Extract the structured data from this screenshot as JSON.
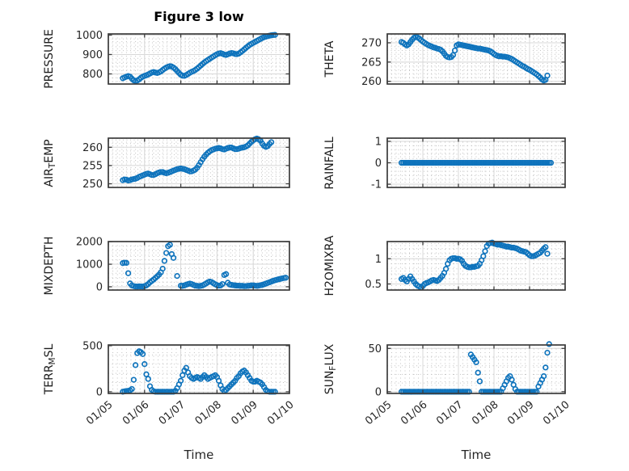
{
  "figure": {
    "title": "Figure 3 low",
    "marker_color": "#0E73BC",
    "axis_color": "#3c3c3c",
    "tick_label_color": "#262626",
    "grid_major_color": "#d8d8d8",
    "grid_minor_color": "#c3c3c3"
  },
  "xaxis": {
    "label": "Time",
    "lim": [
      0,
      5
    ],
    "major_ticks": [
      0,
      1,
      2,
      3,
      4,
      5
    ],
    "tick_labels": [
      "01/05",
      "01/06",
      "01/07",
      "01/08",
      "01/09",
      "01/10"
    ],
    "minor_step": 0.125
  },
  "chart_data": [
    {
      "name": "PRESSURE",
      "type": "scatter",
      "ylabel": {
        "pre": "PRESSURE",
        "sub": "",
        "post": ""
      },
      "ylim": [
        748,
        1006
      ],
      "yticks": [
        800,
        900,
        1000
      ],
      "ytick_labels": [
        "800",
        "900",
        "1000"
      ],
      "yminor": 20,
      "x0": 0.4,
      "dx": 0.05,
      "y": [
        778,
        782,
        786,
        789,
        786,
        776,
        767,
        763,
        766,
        772,
        780,
        786,
        790,
        793,
        797,
        802,
        807,
        810,
        807,
        805,
        808,
        813,
        820,
        827,
        833,
        837,
        840,
        838,
        833,
        825,
        815,
        805,
        796,
        791,
        790,
        794,
        800,
        806,
        811,
        815,
        820,
        827,
        835,
        843,
        851,
        859,
        866,
        872,
        878,
        884,
        890,
        896,
        901,
        905,
        907,
        904,
        900,
        898,
        901,
        905,
        908,
        906,
        903,
        902,
        905,
        911,
        918,
        926,
        934,
        942,
        949,
        955,
        960,
        965,
        970,
        975,
        980,
        985,
        989,
        992,
        995,
        997,
        999,
        1000,
        1001
      ]
    },
    {
      "name": "THETA",
      "type": "scatter",
      "ylabel": {
        "pre": "THETA",
        "sub": "",
        "post": ""
      },
      "ylim": [
        259.3,
        272.3
      ],
      "yticks": [
        260,
        265,
        270
      ],
      "ytick_labels": [
        "260",
        "265",
        "270"
      ],
      "yminor": 1,
      "x0": 0.4,
      "dx": 0.05,
      "y": [
        270.2,
        270.0,
        269.6,
        269.3,
        269.6,
        270.2,
        270.8,
        271.3,
        271.5,
        271.4,
        271.1,
        270.7,
        270.3,
        270.0,
        269.7,
        269.4,
        269.2,
        269.0,
        268.8,
        268.7,
        268.5,
        268.4,
        268.2,
        267.8,
        267.2,
        266.6,
        266.3,
        266.2,
        266.3,
        266.8,
        268.0,
        269.3,
        269.6,
        269.5,
        269.4,
        269.3,
        269.2,
        269.1,
        269.0,
        268.9,
        268.8,
        268.7,
        268.6,
        268.5,
        268.5,
        268.4,
        268.3,
        268.2,
        268.1,
        268.0,
        267.8,
        267.5,
        267.1,
        266.8,
        266.6,
        266.5,
        266.5,
        266.4,
        266.4,
        266.3,
        266.2,
        266.0,
        265.8,
        265.5,
        265.2,
        264.9,
        264.6,
        264.3,
        264.0,
        263.8,
        263.5,
        263.2,
        263.0,
        262.7,
        262.4,
        262.1,
        261.8,
        261.4,
        261.0,
        260.5,
        260.2,
        260.4,
        261.5
      ]
    },
    {
      "name": "AIR_TEMP",
      "type": "scatter",
      "ylabel": {
        "pre": "AIR",
        "sub": "T",
        "post": "EMP"
      },
      "ylim": [
        249,
        262.5
      ],
      "yticks": [
        250,
        255,
        260
      ],
      "ytick_labels": [
        "250",
        "255",
        "260"
      ],
      "yminor": 1,
      "x0": 0.4,
      "dx": 0.05,
      "y": [
        251.0,
        251.2,
        251.1,
        250.9,
        251.0,
        251.2,
        251.3,
        251.4,
        251.6,
        251.9,
        252.1,
        252.3,
        252.5,
        252.7,
        252.8,
        252.6,
        252.4,
        252.4,
        252.6,
        252.9,
        253.1,
        253.2,
        253.2,
        253.0,
        252.9,
        253.0,
        253.2,
        253.4,
        253.6,
        253.8,
        254.0,
        254.1,
        254.2,
        254.1,
        254.0,
        253.8,
        253.6,
        253.4,
        253.4,
        253.6,
        253.9,
        254.4,
        255.1,
        255.9,
        256.7,
        257.4,
        258.0,
        258.5,
        258.9,
        259.2,
        259.4,
        259.6,
        259.7,
        259.8,
        259.7,
        259.5,
        259.4,
        259.6,
        259.8,
        259.9,
        259.9,
        259.7,
        259.5,
        259.5,
        259.6,
        259.8,
        259.9,
        260.0,
        260.2,
        260.5,
        261.0,
        261.5,
        261.9,
        262.2,
        262.4,
        262.2,
        261.8,
        261.0,
        260.4,
        260.1,
        260.3,
        260.9,
        261.4
      ]
    },
    {
      "name": "RAINFALL",
      "type": "scatter",
      "ylabel": {
        "pre": "RAINFALL",
        "sub": "",
        "post": ""
      },
      "ylim": [
        -1.15,
        1.15
      ],
      "yticks": [
        -1,
        0,
        1
      ],
      "ytick_labels": [
        "-1",
        "0",
        "1"
      ],
      "yminor": 0.2,
      "x0": 0.4,
      "dx": 0.05,
      "y": [
        0,
        0,
        0,
        0,
        0,
        0,
        0,
        0,
        0,
        0,
        0,
        0,
        0,
        0,
        0,
        0,
        0,
        0,
        0,
        0,
        0,
        0,
        0,
        0,
        0,
        0,
        0,
        0,
        0,
        0,
        0,
        0,
        0,
        0,
        0,
        0,
        0,
        0,
        0,
        0,
        0,
        0,
        0,
        0,
        0,
        0,
        0,
        0,
        0,
        0,
        0,
        0,
        0,
        0,
        0,
        0,
        0,
        0,
        0,
        0,
        0,
        0,
        0,
        0,
        0,
        0,
        0,
        0,
        0,
        0,
        0,
        0,
        0,
        0,
        0,
        0,
        0,
        0,
        0,
        0,
        0,
        0,
        0,
        0,
        0
      ]
    },
    {
      "name": "MIXDEPTH",
      "type": "scatter",
      "ylabel": {
        "pre": "MIXDEPTH",
        "sub": "",
        "post": ""
      },
      "ylim": [
        -145,
        2005
      ],
      "yticks": [
        0,
        1000,
        2000
      ],
      "ytick_labels": [
        "0",
        "1000",
        "2000"
      ],
      "yminor": 200,
      "x0": 0.4,
      "dx": 0.05,
      "y": [
        1050,
        1070,
        1060,
        600,
        150,
        60,
        30,
        15,
        10,
        20,
        15,
        10,
        30,
        60,
        120,
        200,
        260,
        320,
        390,
        460,
        540,
        640,
        800,
        1150,
        1500,
        1800,
        1860,
        1450,
        1280,
        null,
        480,
        null,
        50,
        40,
        60,
        90,
        120,
        140,
        120,
        80,
        50,
        40,
        30,
        40,
        60,
        100,
        150,
        200,
        230,
        210,
        160,
        110,
        70,
        50,
        60,
        120,
        520,
        560,
        180,
        100,
        80,
        70,
        60,
        50,
        50,
        40,
        40,
        30,
        30,
        40,
        50,
        60,
        60,
        50,
        40,
        50,
        70,
        80,
        110,
        140,
        170,
        200,
        230,
        260,
        290,
        310,
        330,
        350,
        370,
        390,
        400
      ]
    },
    {
      "name": "H2OMIXRA",
      "type": "scatter",
      "ylabel": {
        "pre": "H2OMIXRA",
        "sub": "",
        "post": ""
      },
      "ylim": [
        0.38,
        1.34
      ],
      "yticks": [
        0.5,
        1
      ],
      "ytick_labels": [
        "0.5",
        "1"
      ],
      "yminor": 0.1,
      "x0": 0.4,
      "dx": 0.05,
      "y": [
        0.6,
        0.62,
        0.58,
        0.55,
        0.6,
        0.65,
        0.6,
        0.55,
        0.5,
        0.47,
        0.45,
        0.43,
        0.46,
        0.5,
        0.52,
        0.53,
        0.55,
        0.57,
        0.58,
        0.57,
        0.56,
        0.58,
        0.62,
        0.66,
        0.72,
        0.8,
        0.9,
        0.97,
        1.0,
        1.01,
        1.01,
        1.0,
        1.0,
        0.99,
        0.96,
        0.9,
        0.86,
        0.84,
        0.83,
        0.83,
        0.84,
        0.84,
        0.85,
        0.86,
        0.9,
        0.97,
        1.05,
        1.15,
        1.25,
        1.3,
        1.31,
        1.32,
        1.3,
        1.29,
        1.28,
        1.28,
        1.27,
        1.26,
        1.25,
        1.24,
        1.24,
        1.23,
        1.22,
        1.22,
        1.21,
        1.2,
        1.18,
        1.16,
        1.15,
        1.14,
        1.13,
        1.1,
        1.07,
        1.05,
        1.05,
        1.06,
        1.08,
        1.1,
        1.12,
        1.16,
        1.2,
        1.23,
        1.1
      ]
    },
    {
      "name": "TERR_MSL",
      "type": "scatter",
      "ylabel": {
        "pre": "TERR",
        "sub": "M",
        "post": "SL"
      },
      "ylim": [
        -18,
        508
      ],
      "yticks": [
        0,
        500
      ],
      "ytick_labels": [
        "0",
        "500"
      ],
      "yminor": 100,
      "x0": 0.4,
      "dx": 0.05,
      "y": [
        0,
        5,
        8,
        10,
        15,
        30,
        130,
        290,
        420,
        440,
        430,
        410,
        300,
        190,
        140,
        60,
        20,
        5,
        0,
        0,
        0,
        0,
        0,
        0,
        0,
        0,
        0,
        0,
        0,
        10,
        40,
        80,
        120,
        180,
        230,
        260,
        210,
        170,
        150,
        140,
        150,
        160,
        150,
        140,
        160,
        180,
        160,
        140,
        150,
        160,
        170,
        180,
        160,
        120,
        70,
        30,
        10,
        20,
        40,
        60,
        80,
        100,
        120,
        150,
        170,
        200,
        220,
        230,
        210,
        180,
        150,
        120,
        110,
        110,
        120,
        110,
        100,
        80,
        50,
        20,
        5,
        0,
        0,
        0,
        0
      ]
    },
    {
      "name": "SUN_FLUX",
      "type": "scatter",
      "ylabel": {
        "pre": "SUN",
        "sub": "F",
        "post": "LUX"
      },
      "ylim": [
        -2,
        54
      ],
      "yticks": [
        0,
        50
      ],
      "ytick_labels": [
        "0",
        "50"
      ],
      "yminor": 10,
      "x0": 0.4,
      "dx": 0.05,
      "y": [
        0,
        0,
        0,
        0,
        0,
        0,
        0,
        0,
        0,
        0,
        0,
        0,
        0,
        0,
        0,
        0,
        0,
        0,
        0,
        0,
        0,
        0,
        0,
        0,
        0,
        0,
        0,
        0,
        0,
        0,
        0,
        0,
        0,
        0,
        0,
        0,
        0,
        0,
        0,
        43,
        40,
        37,
        34,
        22,
        12,
        0,
        0,
        0,
        0,
        0,
        0,
        0,
        0,
        0,
        0,
        0,
        0,
        4,
        8,
        12,
        16,
        18,
        14,
        8,
        3,
        0,
        0,
        0,
        0,
        0,
        0,
        0,
        0,
        0,
        0,
        0,
        0,
        6,
        10,
        14,
        18,
        28,
        45,
        55
      ]
    }
  ]
}
